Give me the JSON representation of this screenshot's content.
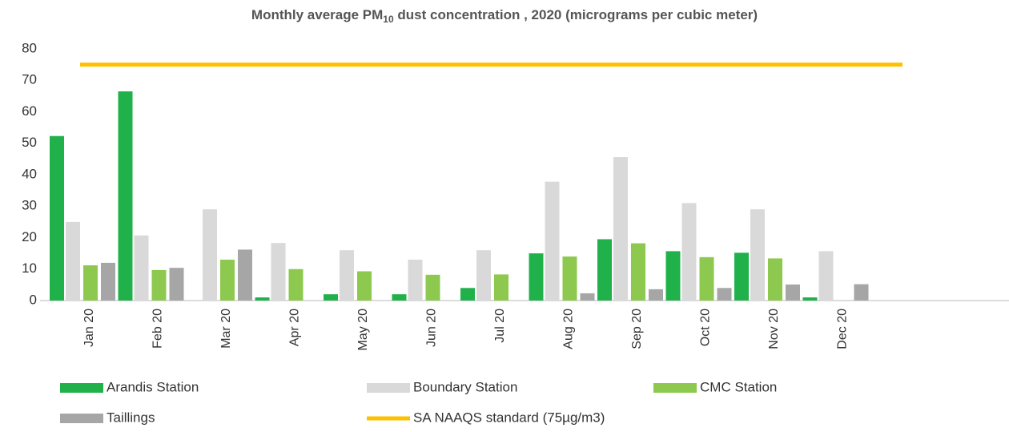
{
  "chart_data": {
    "type": "bar",
    "title": [
      "Monthly average PM",
      "10",
      " dust concentration , 2020 (micrograms per cubic meter)"
    ],
    "categories": [
      "Jan 20",
      "Feb 20",
      "Mar 20",
      "Apr 20",
      "May 20",
      "Jun 20",
      "Jul 20",
      "Aug 20",
      "Sep 20",
      "Oct 20",
      "Nov 20",
      "Dec 20"
    ],
    "series": [
      {
        "name": "Arandis Station",
        "color": "#21b14b",
        "values": [
          52.3,
          66.5,
          null,
          1,
          2,
          2,
          4,
          15,
          19.5,
          15.7,
          15.2,
          1
        ]
      },
      {
        "name": "Boundary Station",
        "color": "#d9d9d9",
        "values": [
          25,
          20.7,
          29,
          18.3,
          16,
          13,
          16,
          37.8,
          45.6,
          31,
          29,
          15.7
        ]
      },
      {
        "name": "CMC Station",
        "color": "#8dc94f",
        "values": [
          11.2,
          9.7,
          13,
          10,
          9.3,
          8.2,
          8.3,
          14,
          18.2,
          13.8,
          13.4,
          null
        ]
      },
      {
        "name": "Taillings",
        "color": "#a6a6a6",
        "values": [
          12,
          10.4,
          16.2,
          null,
          null,
          null,
          null,
          2.3,
          3.6,
          4,
          5.1,
          5.2
        ]
      },
      {
        "name": "SA NAAQS standard (75µg/m3)",
        "color": "#ffc000",
        "type": "line",
        "values": [
          75,
          75,
          75,
          75,
          75,
          75,
          75,
          75,
          75,
          75,
          75,
          75
        ]
      }
    ],
    "ylim": [
      0,
      80
    ],
    "yticks": [
      0,
      10,
      20,
      30,
      40,
      50,
      60,
      70,
      80
    ],
    "grid": false
  }
}
